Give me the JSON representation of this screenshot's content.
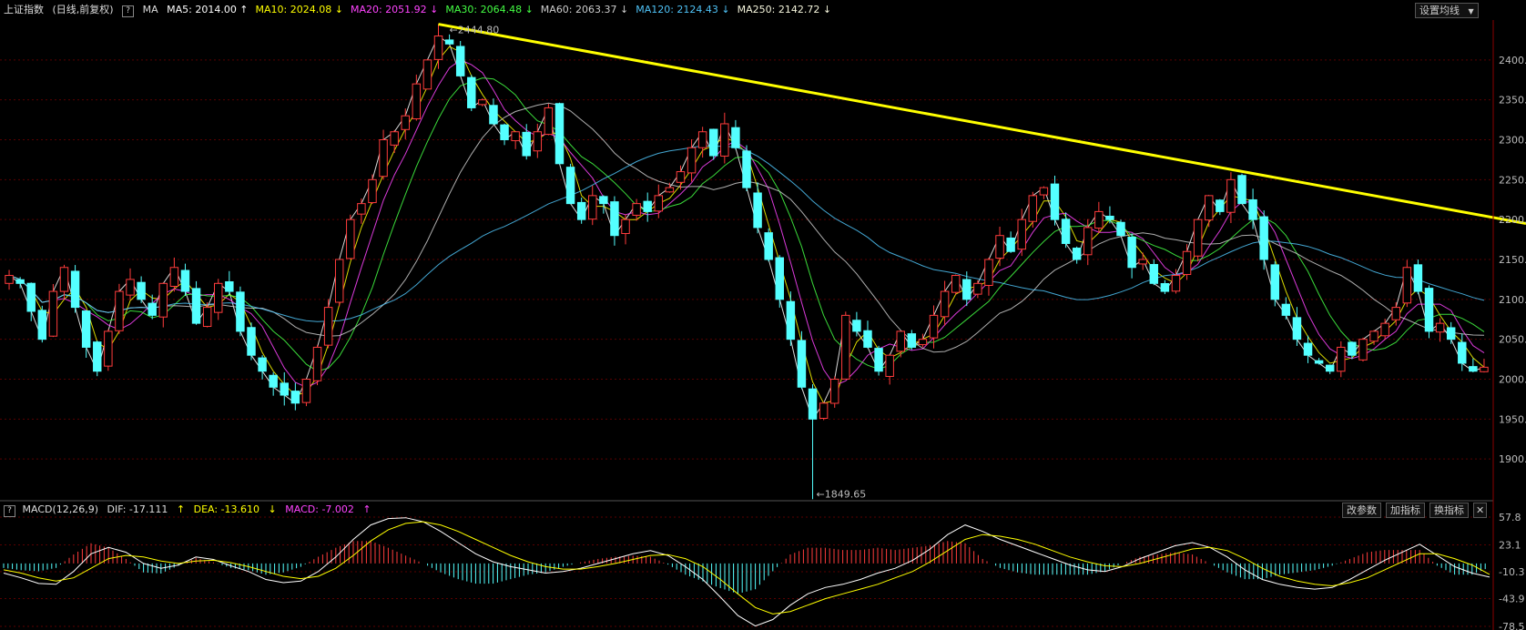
{
  "header": {
    "title": "上证指数",
    "subtitle": "(日线,前复权)",
    "help": "?",
    "ma_label": "MA",
    "ma": [
      {
        "label": "MA5: 2014.00",
        "arrow": "↑",
        "color": "#ffffff"
      },
      {
        "label": "MA10: 2024.08",
        "arrow": "↓",
        "color": "#ffff00"
      },
      {
        "label": "MA20: 2051.92",
        "arrow": "↓",
        "color": "#ff44ff"
      },
      {
        "label": "MA30: 2064.48",
        "arrow": "↓",
        "color": "#44ff44"
      },
      {
        "label": "MA60: 2063.37",
        "arrow": "↓",
        "color": "#cccccc"
      },
      {
        "label": "MA120: 2124.43",
        "arrow": "↓",
        "color": "#4fc3f7"
      },
      {
        "label": "MA250: 2142.72",
        "arrow": "↓",
        "color": "#f5f5dc"
      }
    ],
    "settings_button": "设置均线",
    "settings_arrow": "▼"
  },
  "macd_header": {
    "label": "MACD(12,26,9)",
    "dif": "DIF: -17.111",
    "dif_arrow": "↑",
    "dea": "DEA: -13.610",
    "dea_arrow": "↓",
    "macd": "MACD: -7.002",
    "macd_arrow": "↑",
    "buttons": [
      "改参数",
      "加指标",
      "换指标"
    ],
    "close": "✕"
  },
  "colors": {
    "up": "#ff3c3c",
    "down": "#54ffff",
    "trendline": "#ffff00",
    "grid": "#5a0000"
  },
  "chart_data": [
    {
      "type": "candlestick",
      "title": "上证指数 (日线,前复权)",
      "ylim": [
        1850,
        2450
      ],
      "yticks": [
        1900,
        1950,
        2000,
        2050,
        2100,
        2150,
        2200,
        2250,
        2300,
        2350,
        2400
      ],
      "annotations": [
        {
          "label": "2444.80",
          "value": 2444.8,
          "kind": "high"
        },
        {
          "label": "1849.65",
          "value": 1849.65,
          "kind": "low"
        }
      ],
      "trendline": {
        "from": 2444.8,
        "to": 2195,
        "color": "#ffff00"
      },
      "close_path": [
        2130,
        2120,
        2085,
        2050,
        2110,
        2140,
        2090,
        2040,
        2010,
        2060,
        2110,
        2125,
        2100,
        2080,
        2120,
        2140,
        2110,
        2070,
        2090,
        2120,
        2110,
        2060,
        2030,
        2010,
        1990,
        1980,
        1970,
        2000,
        2040,
        2090,
        2150,
        2200,
        2220,
        2250,
        2300,
        2310,
        2330,
        2370,
        2400,
        2430,
        2420,
        2380,
        2340,
        2350,
        2320,
        2300,
        2310,
        2280,
        2310,
        2340,
        2270,
        2220,
        2200,
        2230,
        2220,
        2180,
        2200,
        2220,
        2210,
        2230,
        2240,
        2260,
        2290,
        2310,
        2280,
        2320,
        2290,
        2240,
        2190,
        2150,
        2100,
        2050,
        1990,
        1950,
        1970,
        2000,
        2080,
        2060,
        2040,
        2010,
        2030,
        2060,
        2040,
        2050,
        2080,
        2110,
        2130,
        2100,
        2120,
        2150,
        2180,
        2160,
        2200,
        2230,
        2240,
        2200,
        2170,
        2150,
        2190,
        2210,
        2200,
        2180,
        2140,
        2150,
        2120,
        2110,
        2130,
        2160,
        2200,
        2230,
        2210,
        2250,
        2220,
        2200,
        2150,
        2100,
        2080,
        2050,
        2030,
        2020,
        2010,
        2040,
        2030,
        2050,
        2060,
        2070,
        2090,
        2140,
        2110,
        2060,
        2070,
        2050,
        2020,
        2010,
        2015
      ]
    },
    {
      "type": "macd",
      "title": "MACD(12,26,9)",
      "yticks": [
        57.8,
        23.1,
        -10.3,
        -43.9,
        -78.5
      ],
      "series": [
        {
          "name": "DIF",
          "values": [
            -12,
            -18,
            -25,
            -26,
            -10,
            12,
            20,
            14,
            0,
            -6,
            -2,
            8,
            5,
            -3,
            -10,
            -20,
            -24,
            -22,
            -10,
            8,
            30,
            48,
            56,
            57,
            52,
            40,
            26,
            12,
            2,
            -4,
            -8,
            -12,
            -10,
            -6,
            0,
            6,
            12,
            16,
            10,
            -4,
            -20,
            -42,
            -65,
            -78,
            -70,
            -52,
            -38,
            -30,
            -26,
            -20,
            -12,
            -6,
            4,
            18,
            36,
            48,
            40,
            30,
            22,
            14,
            6,
            -2,
            -8,
            -10,
            -4,
            6,
            14,
            22,
            26,
            20,
            8,
            -8,
            -20,
            -26,
            -30,
            -32,
            -30,
            -20,
            -8,
            4,
            14,
            24,
            10,
            -4,
            -12,
            -17
          ]
        },
        {
          "name": "DEA",
          "values": [
            -8,
            -12,
            -18,
            -22,
            -18,
            -6,
            6,
            10,
            8,
            3,
            0,
            3,
            4,
            1,
            -4,
            -10,
            -16,
            -19,
            -16,
            -6,
            10,
            28,
            42,
            50,
            52,
            48,
            40,
            30,
            20,
            10,
            2,
            -4,
            -7,
            -7,
            -4,
            0,
            5,
            10,
            11,
            6,
            -4,
            -20,
            -38,
            -55,
            -63,
            -60,
            -52,
            -44,
            -38,
            -32,
            -26,
            -18,
            -10,
            2,
            16,
            30,
            36,
            34,
            30,
            24,
            16,
            8,
            2,
            -3,
            -4,
            0,
            6,
            12,
            18,
            20,
            16,
            6,
            -6,
            -16,
            -22,
            -26,
            -28,
            -24,
            -18,
            -8,
            2,
            12,
            12,
            6,
            -2,
            -13.6
          ]
        }
      ]
    }
  ]
}
